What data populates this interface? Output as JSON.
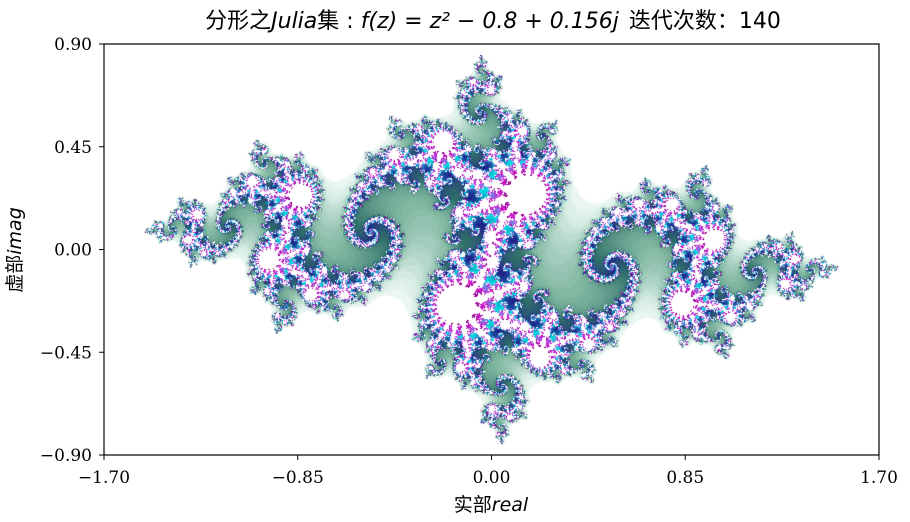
{
  "chart_data": {
    "type": "heatmap",
    "title": {
      "prefix": "分形之",
      "italic_word": "Julia",
      "suffix": "集 : ",
      "formula": "f(z) = z² − 0.8 + 0.156j",
      "iterations_label": "迭代次数：",
      "iterations": "140"
    },
    "xlabel": {
      "prefix": "实部",
      "italic": "real"
    },
    "ylabel": {
      "prefix": "虚部",
      "italic": "imag"
    },
    "xlim": [
      -1.7,
      1.7
    ],
    "ylim": [
      -0.9,
      0.9
    ],
    "xticks": [
      -1.7,
      -0.85,
      0.0,
      0.85,
      1.7
    ],
    "yticks": [
      -0.9,
      -0.45,
      0.0,
      0.45,
      0.9
    ],
    "xtick_labels": [
      "−1.70",
      "−0.85",
      "0.00",
      "0.85",
      "1.70"
    ],
    "ytick_labels": [
      "−0.90",
      "−0.45",
      "0.00",
      "0.45",
      "0.90"
    ],
    "c_real": -0.8,
    "c_imag": 0.156,
    "max_iter": 140,
    "grid": false,
    "colors": {
      "background": "#ffffff",
      "palette": [
        "#ffffff",
        "#d6ece4",
        "#7fb7a0",
        "#2f6f6a",
        "#20208a",
        "#00e0e0",
        "#e020e0",
        "#8a008a"
      ]
    }
  }
}
